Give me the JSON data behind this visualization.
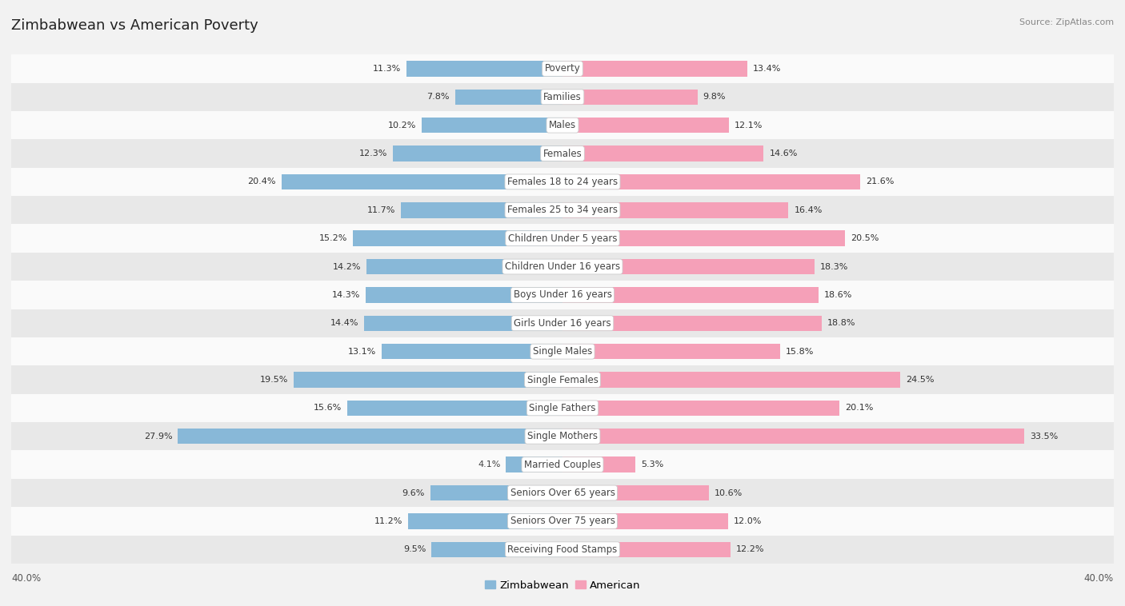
{
  "title": "Zimbabwean vs American Poverty",
  "source": "Source: ZipAtlas.com",
  "categories": [
    "Poverty",
    "Families",
    "Males",
    "Females",
    "Females 18 to 24 years",
    "Females 25 to 34 years",
    "Children Under 5 years",
    "Children Under 16 years",
    "Boys Under 16 years",
    "Girls Under 16 years",
    "Single Males",
    "Single Females",
    "Single Fathers",
    "Single Mothers",
    "Married Couples",
    "Seniors Over 65 years",
    "Seniors Over 75 years",
    "Receiving Food Stamps"
  ],
  "zimbabwean": [
    11.3,
    7.8,
    10.2,
    12.3,
    20.4,
    11.7,
    15.2,
    14.2,
    14.3,
    14.4,
    13.1,
    19.5,
    15.6,
    27.9,
    4.1,
    9.6,
    11.2,
    9.5
  ],
  "american": [
    13.4,
    9.8,
    12.1,
    14.6,
    21.6,
    16.4,
    20.5,
    18.3,
    18.6,
    18.8,
    15.8,
    24.5,
    20.1,
    33.5,
    5.3,
    10.6,
    12.0,
    12.2
  ],
  "zim_color": "#88b8d8",
  "amer_color": "#f5a0b8",
  "axis_max": 40.0,
  "bg_color": "#f2f2f2",
  "row_bg_light": "#fafafa",
  "row_bg_dark": "#e8e8e8",
  "title_fontsize": 13,
  "label_fontsize": 8.5,
  "value_fontsize": 8.0,
  "legend_fontsize": 9.5
}
